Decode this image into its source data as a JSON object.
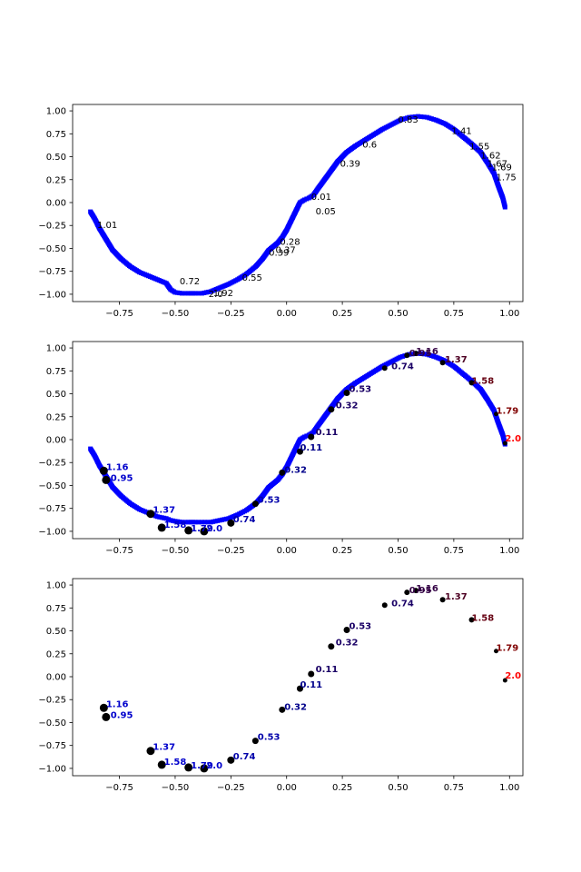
{
  "chart_data": [
    {
      "type": "scatter",
      "title": "",
      "xlabel": "",
      "ylabel": "",
      "xlim": [
        -0.96,
        1.06
      ],
      "ylim": [
        -1.08,
        1.07
      ],
      "xticks": [
        -0.75,
        -0.5,
        -0.25,
        0.0,
        0.25,
        0.5,
        0.75,
        1.0
      ],
      "xtick_labels": [
        "−0.75",
        "−0.50",
        "−0.25",
        "0.00",
        "0.25",
        "0.50",
        "0.75",
        "1.00"
      ],
      "yticks": [
        -1.0,
        -0.75,
        -0.5,
        -0.25,
        0.0,
        0.25,
        0.5,
        0.75,
        1.0
      ],
      "ytick_labels": [
        "−1.00",
        "−0.75",
        "−0.50",
        "−0.25",
        "0.00",
        "0.25",
        "0.50",
        "0.75",
        "1.00"
      ],
      "grid": false,
      "series": [
        {
          "color": "#0000ff",
          "marker": "square",
          "style": "dense-curve",
          "x": [
            -0.88,
            -0.86,
            -0.84,
            -0.81,
            -0.78,
            -0.74,
            -0.7,
            -0.66,
            -0.62,
            -0.58,
            -0.54,
            -0.52,
            -0.5,
            -0.47,
            -0.44,
            -0.41,
            -0.38,
            -0.34,
            -0.3,
            -0.26,
            -0.22,
            -0.18,
            -0.14,
            -0.11,
            -0.08,
            -0.06,
            -0.04,
            -0.02,
            0.0,
            0.02,
            0.04,
            0.06,
            0.08,
            0.1,
            0.12,
            0.14,
            0.17,
            0.2,
            0.23,
            0.27,
            0.31,
            0.35,
            0.39,
            0.43,
            0.47,
            0.51,
            0.55,
            0.59,
            0.63,
            0.67,
            0.71,
            0.75,
            0.79,
            0.83,
            0.87,
            0.9,
            0.93,
            0.95,
            0.97,
            0.98
          ],
          "y": [
            -0.1,
            -0.18,
            -0.28,
            -0.4,
            -0.52,
            -0.62,
            -0.7,
            -0.76,
            -0.8,
            -0.84,
            -0.88,
            -0.95,
            -0.98,
            -0.99,
            -0.99,
            -0.99,
            -0.99,
            -0.97,
            -0.93,
            -0.89,
            -0.84,
            -0.78,
            -0.7,
            -0.62,
            -0.52,
            -0.48,
            -0.44,
            -0.38,
            -0.3,
            -0.2,
            -0.1,
            0.0,
            0.03,
            0.05,
            0.08,
            0.15,
            0.25,
            0.35,
            0.45,
            0.55,
            0.62,
            0.68,
            0.74,
            0.8,
            0.85,
            0.9,
            0.93,
            0.94,
            0.93,
            0.9,
            0.86,
            0.8,
            0.72,
            0.64,
            0.55,
            0.44,
            0.32,
            0.18,
            0.05,
            -0.05
          ]
        }
      ],
      "annotations": [
        {
          "text": "0.05",
          "x": 0.13,
          "y": -0.1,
          "color": "#000000"
        },
        {
          "text": "0.01",
          "x": 0.11,
          "y": 0.06,
          "color": "#000000"
        },
        {
          "text": "0.28",
          "x": -0.03,
          "y": -0.43,
          "color": "#000000"
        },
        {
          "text": "0.37",
          "x": -0.05,
          "y": -0.52,
          "color": "#000000"
        },
        {
          "text": "0.39",
          "x": -0.08,
          "y": -0.55,
          "color": "#000000"
        },
        {
          "text": "0.39",
          "x": 0.24,
          "y": 0.42,
          "color": "#000000"
        },
        {
          "text": "0.55",
          "x": -0.2,
          "y": -0.82,
          "color": "#000000"
        },
        {
          "text": "0.6",
          "x": 0.34,
          "y": 0.63,
          "color": "#000000"
        },
        {
          "text": "0.72",
          "x": -0.48,
          "y": -0.86,
          "color": "#000000"
        },
        {
          "text": "0.83",
          "x": 0.5,
          "y": 0.9,
          "color": "#000000"
        },
        {
          "text": "1.01",
          "x": -0.85,
          "y": -0.25,
          "color": "#000000"
        },
        {
          "text": "1.41",
          "x": 0.74,
          "y": 0.78,
          "color": "#000000"
        },
        {
          "text": "1.55",
          "x": 0.82,
          "y": 0.61,
          "color": "#000000"
        },
        {
          "text": "1.62",
          "x": 0.87,
          "y": 0.51,
          "color": "#000000"
        },
        {
          "text": "1.67",
          "x": 0.9,
          "y": 0.42,
          "color": "#000000"
        },
        {
          "text": "1.69",
          "x": 0.92,
          "y": 0.38,
          "color": "#000000"
        },
        {
          "text": "1.75",
          "x": 0.94,
          "y": 0.27,
          "color": "#000000"
        },
        {
          "text": "1.92",
          "x": -0.33,
          "y": -0.99,
          "color": "#000000"
        },
        {
          "text": "2.0",
          "x": -0.35,
          "y": -1.0,
          "color": "#000000"
        }
      ]
    },
    {
      "type": "scatter",
      "title": "",
      "xlabel": "",
      "ylabel": "",
      "xlim": [
        -0.96,
        1.06
      ],
      "ylim": [
        -1.08,
        1.07
      ],
      "xticks": [
        -0.75,
        -0.5,
        -0.25,
        0.0,
        0.25,
        0.5,
        0.75,
        1.0
      ],
      "xtick_labels": [
        "−0.75",
        "−0.50",
        "−0.25",
        "0.00",
        "0.25",
        "0.50",
        "0.75",
        "1.00"
      ],
      "yticks": [
        -1.0,
        -0.75,
        -0.5,
        -0.25,
        0.0,
        0.25,
        0.5,
        0.75,
        1.0
      ],
      "ytick_labels": [
        "−1.00",
        "−0.75",
        "−0.50",
        "−0.25",
        "0.00",
        "0.25",
        "0.50",
        "0.75",
        "1.00"
      ],
      "grid": false,
      "series": [
        {
          "color": "#0000ff",
          "marker": "square",
          "style": "dense-curve",
          "x": [
            -0.88,
            -0.86,
            -0.84,
            -0.81,
            -0.78,
            -0.74,
            -0.7,
            -0.66,
            -0.62,
            -0.58,
            -0.54,
            -0.52,
            -0.5,
            -0.47,
            -0.44,
            -0.41,
            -0.38,
            -0.34,
            -0.3,
            -0.26,
            -0.22,
            -0.18,
            -0.14,
            -0.11,
            -0.08,
            -0.06,
            -0.04,
            -0.02,
            0.0,
            0.02,
            0.04,
            0.06,
            0.08,
            0.1,
            0.12,
            0.14,
            0.17,
            0.2,
            0.23,
            0.27,
            0.31,
            0.35,
            0.39,
            0.43,
            0.47,
            0.51,
            0.55,
            0.59,
            0.63,
            0.67,
            0.71,
            0.75,
            0.79,
            0.83,
            0.87,
            0.9,
            0.93,
            0.95,
            0.97,
            0.98
          ],
          "y": [
            -0.1,
            -0.18,
            -0.28,
            -0.4,
            -0.52,
            -0.62,
            -0.7,
            -0.76,
            -0.8,
            -0.84,
            -0.86,
            -0.88,
            -0.89,
            -0.9,
            -0.9,
            -0.9,
            -0.9,
            -0.9,
            -0.88,
            -0.86,
            -0.82,
            -0.77,
            -0.7,
            -0.62,
            -0.52,
            -0.48,
            -0.44,
            -0.38,
            -0.3,
            -0.2,
            -0.1,
            0.0,
            0.03,
            0.05,
            0.08,
            0.15,
            0.25,
            0.35,
            0.45,
            0.55,
            0.62,
            0.68,
            0.74,
            0.8,
            0.85,
            0.9,
            0.93,
            0.94,
            0.93,
            0.9,
            0.86,
            0.8,
            0.72,
            0.64,
            0.55,
            0.44,
            0.32,
            0.18,
            0.05,
            -0.05
          ]
        },
        {
          "color": "#000000",
          "marker": "circle",
          "style": "points",
          "x": [
            -0.82,
            -0.81,
            -0.61,
            -0.56,
            -0.44,
            -0.37,
            -0.25,
            -0.14,
            -0.02,
            0.06,
            0.11,
            0.2,
            0.27,
            0.44,
            0.54,
            0.58,
            0.7,
            0.83,
            0.94,
            0.98
          ],
          "y": [
            -0.34,
            -0.44,
            -0.81,
            -0.96,
            -0.99,
            -1.0,
            -0.91,
            -0.7,
            -0.36,
            -0.13,
            0.03,
            0.33,
            0.51,
            0.78,
            0.92,
            0.94,
            0.84,
            0.62,
            0.28,
            -0.04
          ],
          "sizes": [
            7,
            7,
            7,
            7,
            7,
            7,
            6,
            5,
            5,
            5,
            5,
            5,
            5,
            4,
            4,
            4,
            4,
            4,
            3,
            3
          ]
        }
      ],
      "annotations": [
        {
          "text": "1.16",
          "x": -0.81,
          "y": -0.3,
          "color": "#0000cc"
        },
        {
          "text": "0.95",
          "x": -0.79,
          "y": -0.42,
          "color": "#0000cc"
        },
        {
          "text": "1.37",
          "x": -0.6,
          "y": -0.77,
          "color": "#0000cc"
        },
        {
          "text": "1.58",
          "x": -0.55,
          "y": -0.93,
          "color": "#0000cc"
        },
        {
          "text": "1.79",
          "x": -0.43,
          "y": -0.97,
          "color": "#0000cc"
        },
        {
          "text": "2.0",
          "x": -0.36,
          "y": -0.97,
          "color": "#0000cc"
        },
        {
          "text": "0.74",
          "x": -0.24,
          "y": -0.87,
          "color": "#0000aa"
        },
        {
          "text": "0.53",
          "x": -0.13,
          "y": -0.66,
          "color": "#0000aa"
        },
        {
          "text": "0.32",
          "x": -0.01,
          "y": -0.33,
          "color": "#00008b"
        },
        {
          "text": "0.11",
          "x": 0.06,
          "y": -0.09,
          "color": "#00008b"
        },
        {
          "text": "0.11",
          "x": 0.13,
          "y": 0.08,
          "color": "#1a0066"
        },
        {
          "text": "0.32",
          "x": 0.22,
          "y": 0.37,
          "color": "#1a0066"
        },
        {
          "text": "0.53",
          "x": 0.28,
          "y": 0.55,
          "color": "#1a0066"
        },
        {
          "text": "0.74",
          "x": 0.47,
          "y": 0.8,
          "color": "#1a0066"
        },
        {
          "text": "0.95",
          "x": 0.55,
          "y": 0.94,
          "color": "#330044"
        },
        {
          "text": "1.16",
          "x": 0.58,
          "y": 0.96,
          "color": "#330044"
        },
        {
          "text": "1.37",
          "x": 0.71,
          "y": 0.87,
          "color": "#4d0022"
        },
        {
          "text": "1.58",
          "x": 0.83,
          "y": 0.64,
          "color": "#660011"
        },
        {
          "text": "1.79",
          "x": 0.94,
          "y": 0.31,
          "color": "#800000"
        },
        {
          "text": "2.0",
          "x": 0.98,
          "y": 0.01,
          "color": "#ff0000"
        }
      ]
    },
    {
      "type": "scatter",
      "title": "",
      "xlabel": "",
      "ylabel": "",
      "xlim": [
        -0.96,
        1.06
      ],
      "ylim": [
        -1.08,
        1.07
      ],
      "xticks": [
        -0.75,
        -0.5,
        -0.25,
        0.0,
        0.25,
        0.5,
        0.75,
        1.0
      ],
      "xtick_labels": [
        "−0.75",
        "−0.50",
        "−0.25",
        "0.00",
        "0.25",
        "0.50",
        "0.75",
        "1.00"
      ],
      "yticks": [
        -1.0,
        -0.75,
        -0.5,
        -0.25,
        0.0,
        0.25,
        0.5,
        0.75,
        1.0
      ],
      "ytick_labels": [
        "−1.00",
        "−0.75",
        "−0.50",
        "−0.25",
        "0.00",
        "0.25",
        "0.50",
        "0.75",
        "1.00"
      ],
      "grid": false,
      "series": [
        {
          "color": "#000000",
          "marker": "circle",
          "style": "points",
          "x": [
            -0.82,
            -0.81,
            -0.61,
            -0.56,
            -0.44,
            -0.37,
            -0.25,
            -0.14,
            -0.02,
            0.06,
            0.11,
            0.2,
            0.27,
            0.44,
            0.54,
            0.58,
            0.7,
            0.83,
            0.94,
            0.98
          ],
          "y": [
            -0.34,
            -0.44,
            -0.81,
            -0.96,
            -0.99,
            -1.0,
            -0.91,
            -0.7,
            -0.36,
            -0.13,
            0.03,
            0.33,
            0.51,
            0.78,
            0.92,
            0.94,
            0.84,
            0.62,
            0.28,
            -0.04
          ],
          "sizes": [
            7,
            7,
            7,
            7,
            7,
            7,
            6,
            5,
            5,
            5,
            5,
            5,
            5,
            4,
            4,
            4,
            4,
            4,
            3,
            3
          ]
        }
      ],
      "annotations": [
        {
          "text": "1.16",
          "x": -0.81,
          "y": -0.3,
          "color": "#0000cc"
        },
        {
          "text": "0.95",
          "x": -0.79,
          "y": -0.42,
          "color": "#0000cc"
        },
        {
          "text": "1.37",
          "x": -0.6,
          "y": -0.77,
          "color": "#0000cc"
        },
        {
          "text": "1.58",
          "x": -0.55,
          "y": -0.93,
          "color": "#0000cc"
        },
        {
          "text": "1.79",
          "x": -0.43,
          "y": -0.97,
          "color": "#0000cc"
        },
        {
          "text": "2.0",
          "x": -0.36,
          "y": -0.97,
          "color": "#0000cc"
        },
        {
          "text": "0.74",
          "x": -0.24,
          "y": -0.87,
          "color": "#0000aa"
        },
        {
          "text": "0.53",
          "x": -0.13,
          "y": -0.66,
          "color": "#0000aa"
        },
        {
          "text": "0.32",
          "x": -0.01,
          "y": -0.33,
          "color": "#00008b"
        },
        {
          "text": "0.11",
          "x": 0.06,
          "y": -0.09,
          "color": "#00008b"
        },
        {
          "text": "0.11",
          "x": 0.13,
          "y": 0.08,
          "color": "#1a0066"
        },
        {
          "text": "0.32",
          "x": 0.22,
          "y": 0.37,
          "color": "#1a0066"
        },
        {
          "text": "0.53",
          "x": 0.28,
          "y": 0.55,
          "color": "#1a0066"
        },
        {
          "text": "0.74",
          "x": 0.47,
          "y": 0.8,
          "color": "#1a0066"
        },
        {
          "text": "0.95",
          "x": 0.55,
          "y": 0.94,
          "color": "#330044"
        },
        {
          "text": "1.16",
          "x": 0.58,
          "y": 0.96,
          "color": "#330044"
        },
        {
          "text": "1.37",
          "x": 0.71,
          "y": 0.87,
          "color": "#4d0022"
        },
        {
          "text": "1.58",
          "x": 0.83,
          "y": 0.64,
          "color": "#660011"
        },
        {
          "text": "1.79",
          "x": 0.94,
          "y": 0.31,
          "color": "#800000"
        },
        {
          "text": "2.0",
          "x": 0.98,
          "y": 0.01,
          "color": "#ff0000"
        }
      ]
    }
  ]
}
